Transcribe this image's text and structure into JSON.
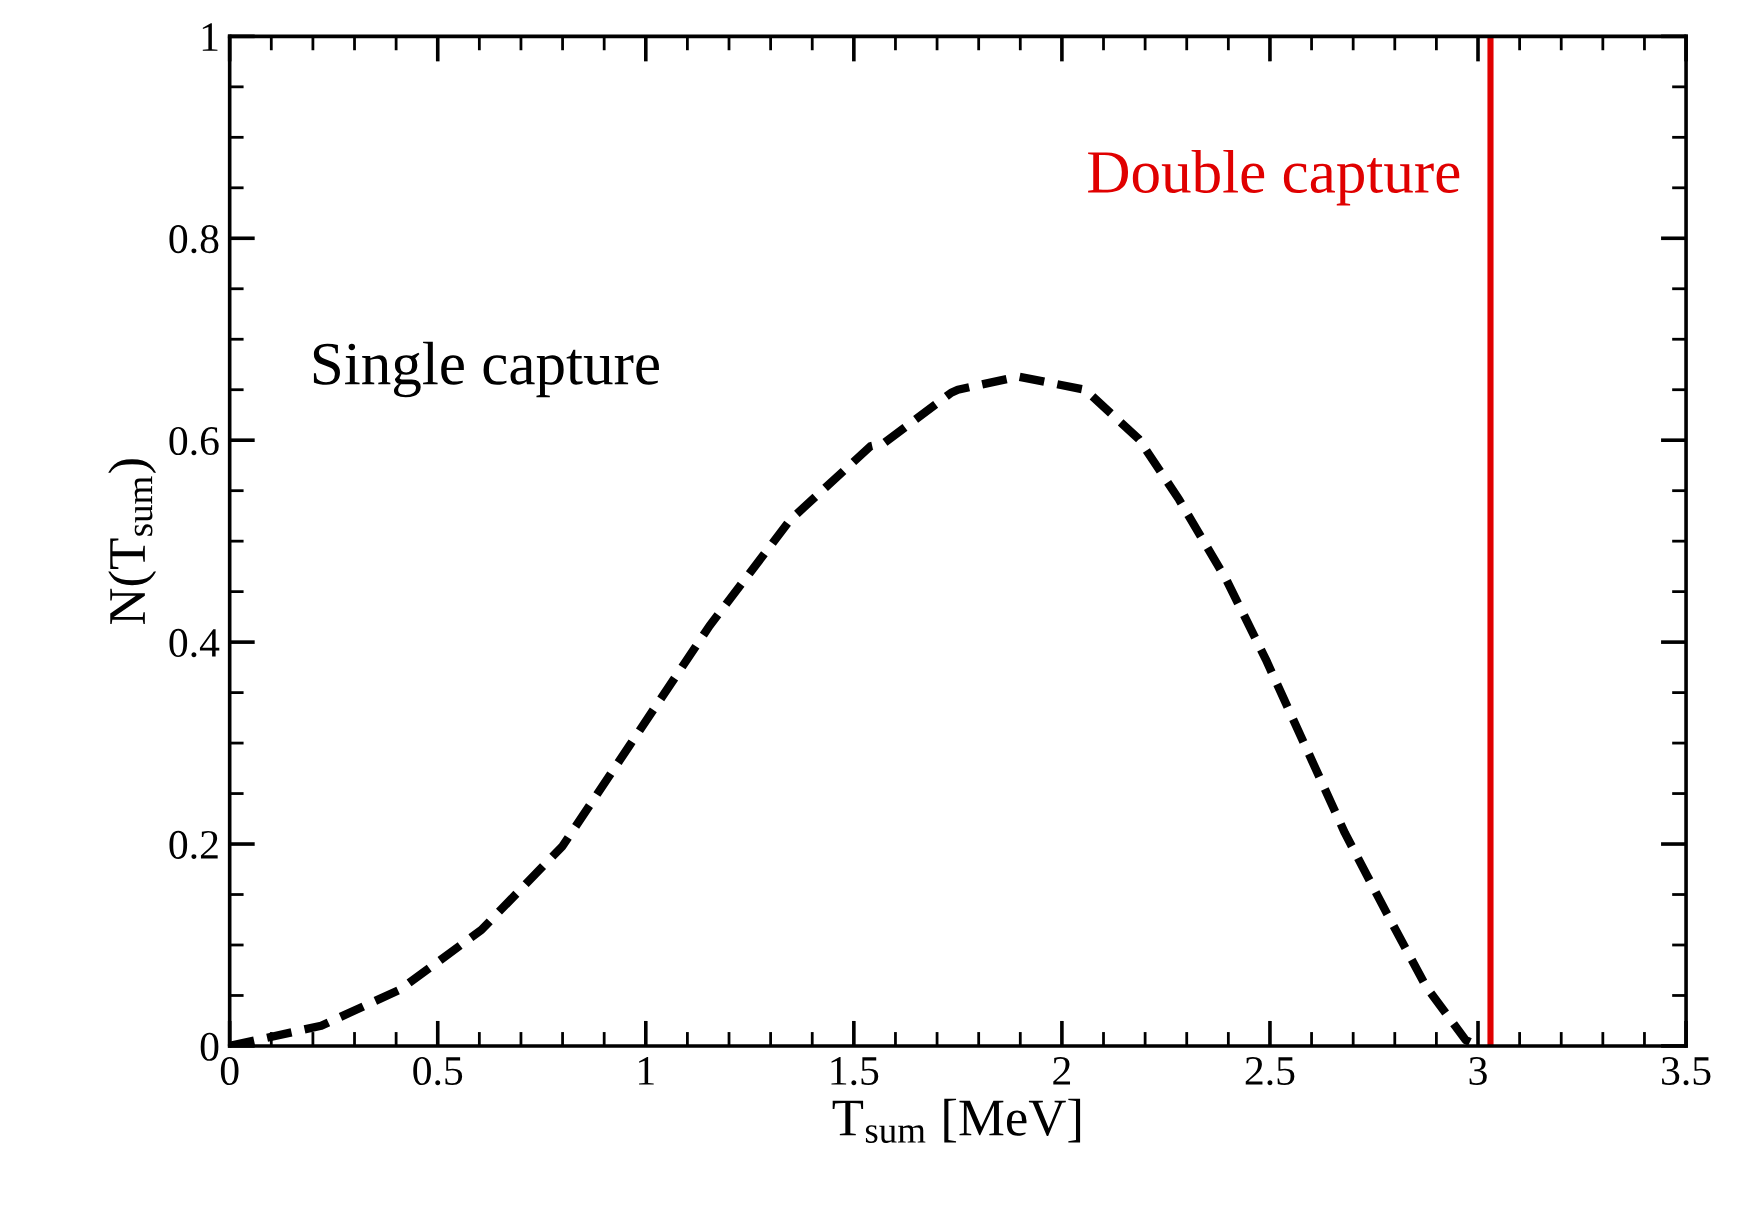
{
  "chart_data": {
    "type": "line",
    "xlabel": "T$_{sum}$ [MeV]",
    "ylabel": "N(T$_{sum}$)",
    "series": [
      {
        "name": "Single capture",
        "color": "#000000",
        "line_style": "dashed",
        "x": [
          0,
          0.22,
          0.41,
          0.605,
          0.8,
          0.96,
          1.153,
          1.347,
          1.54,
          1.572,
          1.734,
          1.75,
          1.895,
          2.056,
          2.185,
          2.282,
          2.395,
          2.49,
          2.585,
          2.68,
          2.78,
          2.875,
          2.97,
          3.0
        ],
        "values": [
          0,
          0.02,
          0.056,
          0.115,
          0.198,
          0.297,
          0.416,
          0.521,
          0.594,
          0.597,
          0.647,
          0.65,
          0.663,
          0.65,
          0.601,
          0.541,
          0.462,
          0.383,
          0.297,
          0.211,
          0.132,
          0.059,
          0.006,
          0
        ]
      }
    ],
    "ref_lines": [
      {
        "axis": "x",
        "value": 3.03,
        "label": "Double capture",
        "color": "#e00000"
      }
    ],
    "xlim": [
      0,
      3.5
    ],
    "ylim": [
      0,
      1
    ],
    "xticks": [
      0,
      0.5,
      1,
      1.5,
      2,
      2.5,
      3,
      3.5
    ],
    "yticks": [
      0,
      0.2,
      0.4,
      0.6,
      0.8,
      1
    ],
    "grid": false,
    "legend": false,
    "marker": "none"
  }
}
